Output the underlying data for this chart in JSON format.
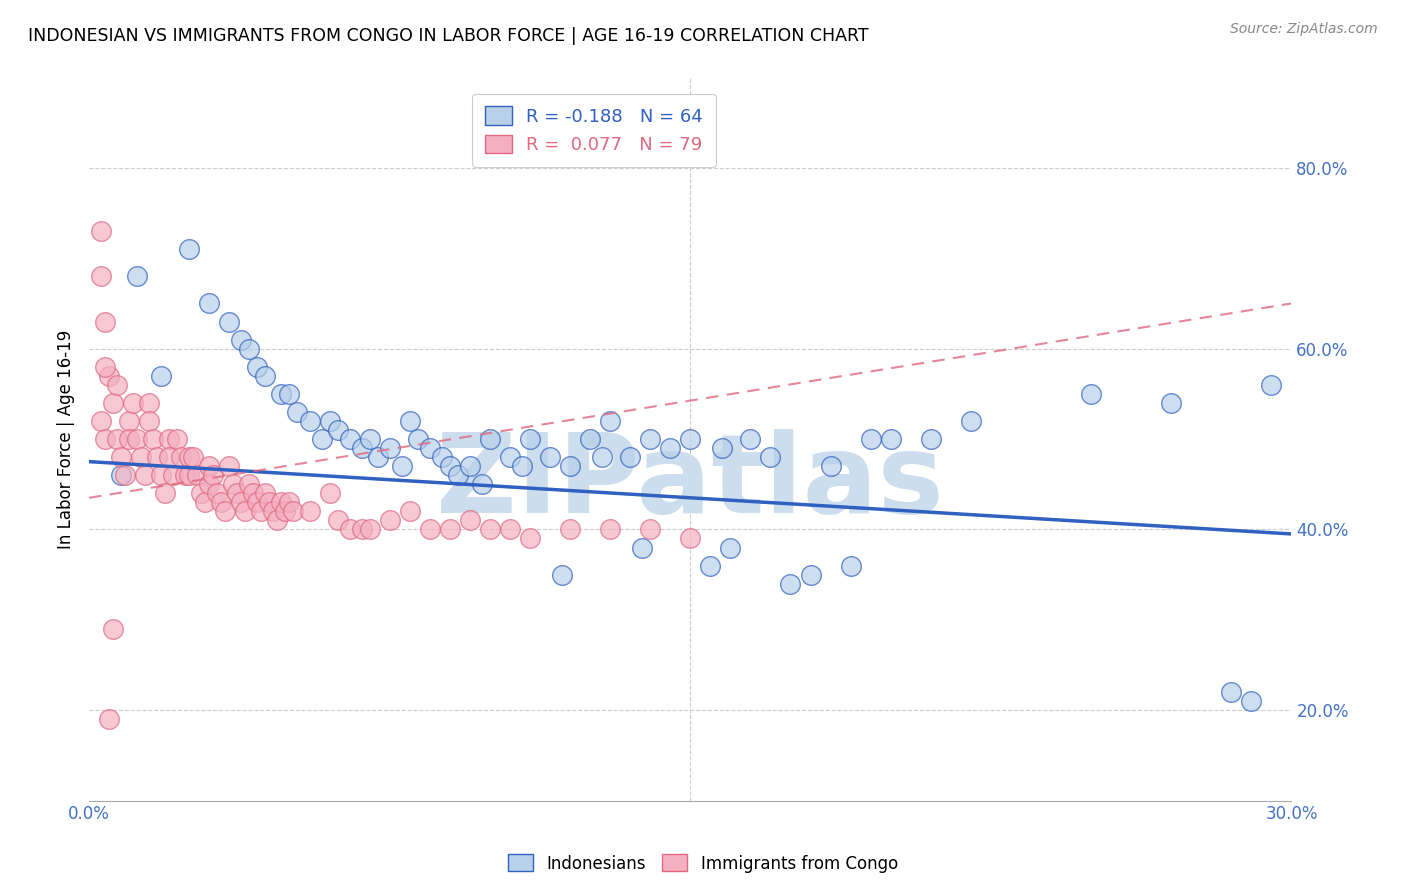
{
  "title": "INDONESIAN VS IMMIGRANTS FROM CONGO IN LABOR FORCE | AGE 16-19 CORRELATION CHART",
  "source": "Source: ZipAtlas.com",
  "ylabel": "In Labor Force | Age 16-19",
  "xlim": [
    0.0,
    0.3
  ],
  "ylim": [
    0.1,
    0.9
  ],
  "yticks_right": [
    0.2,
    0.4,
    0.6,
    0.8
  ],
  "ytick_labels_right": [
    "20.0%",
    "40.0%",
    "60.0%",
    "80.0%"
  ],
  "blue_R": -0.188,
  "blue_N": 64,
  "pink_R": 0.077,
  "pink_N": 79,
  "blue_color": "#b8d0ea",
  "pink_color": "#f4b0c0",
  "blue_line_color": "#3060C0",
  "pink_line_color": "#E06880",
  "watermark": "ZIPatlas",
  "watermark_color": "#ccdded",
  "grid_color": "#cccccc",
  "background_color": "#ffffff",
  "blue_scatter_x": [
    0.008,
    0.025,
    0.03,
    0.035,
    0.038,
    0.04,
    0.042,
    0.044,
    0.048,
    0.05,
    0.052,
    0.055,
    0.058,
    0.06,
    0.062,
    0.065,
    0.068,
    0.07,
    0.072,
    0.075,
    0.078,
    0.08,
    0.082,
    0.085,
    0.088,
    0.09,
    0.092,
    0.095,
    0.098,
    0.1,
    0.105,
    0.108,
    0.11,
    0.115,
    0.118,
    0.12,
    0.125,
    0.128,
    0.13,
    0.135,
    0.138,
    0.14,
    0.145,
    0.15,
    0.155,
    0.158,
    0.16,
    0.165,
    0.17,
    0.175,
    0.18,
    0.185,
    0.19,
    0.195,
    0.2,
    0.21,
    0.22,
    0.25,
    0.27,
    0.285,
    0.29,
    0.295,
    0.012,
    0.018
  ],
  "blue_scatter_y": [
    0.46,
    0.71,
    0.65,
    0.63,
    0.61,
    0.6,
    0.58,
    0.57,
    0.55,
    0.55,
    0.53,
    0.52,
    0.5,
    0.52,
    0.51,
    0.5,
    0.49,
    0.5,
    0.48,
    0.49,
    0.47,
    0.52,
    0.5,
    0.49,
    0.48,
    0.47,
    0.46,
    0.47,
    0.45,
    0.5,
    0.48,
    0.47,
    0.5,
    0.48,
    0.35,
    0.47,
    0.5,
    0.48,
    0.52,
    0.48,
    0.38,
    0.5,
    0.49,
    0.5,
    0.36,
    0.49,
    0.38,
    0.5,
    0.48,
    0.34,
    0.35,
    0.47,
    0.36,
    0.5,
    0.5,
    0.5,
    0.52,
    0.55,
    0.54,
    0.22,
    0.21,
    0.56,
    0.68,
    0.57
  ],
  "pink_scatter_x": [
    0.003,
    0.004,
    0.005,
    0.006,
    0.007,
    0.008,
    0.009,
    0.01,
    0.01,
    0.011,
    0.012,
    0.013,
    0.014,
    0.015,
    0.015,
    0.016,
    0.017,
    0.018,
    0.019,
    0.02,
    0.02,
    0.021,
    0.022,
    0.023,
    0.024,
    0.025,
    0.025,
    0.026,
    0.027,
    0.028,
    0.029,
    0.03,
    0.03,
    0.031,
    0.032,
    0.033,
    0.034,
    0.035,
    0.036,
    0.037,
    0.038,
    0.039,
    0.04,
    0.041,
    0.042,
    0.043,
    0.044,
    0.045,
    0.046,
    0.047,
    0.048,
    0.049,
    0.05,
    0.051,
    0.055,
    0.06,
    0.062,
    0.065,
    0.068,
    0.07,
    0.075,
    0.08,
    0.085,
    0.09,
    0.095,
    0.1,
    0.105,
    0.11,
    0.12,
    0.13,
    0.14,
    0.15,
    0.003,
    0.003,
    0.004,
    0.004,
    0.005,
    0.006,
    0.007
  ],
  "pink_scatter_y": [
    0.52,
    0.5,
    0.57,
    0.54,
    0.5,
    0.48,
    0.46,
    0.52,
    0.5,
    0.54,
    0.5,
    0.48,
    0.46,
    0.54,
    0.52,
    0.5,
    0.48,
    0.46,
    0.44,
    0.5,
    0.48,
    0.46,
    0.5,
    0.48,
    0.46,
    0.48,
    0.46,
    0.48,
    0.46,
    0.44,
    0.43,
    0.47,
    0.45,
    0.46,
    0.44,
    0.43,
    0.42,
    0.47,
    0.45,
    0.44,
    0.43,
    0.42,
    0.45,
    0.44,
    0.43,
    0.42,
    0.44,
    0.43,
    0.42,
    0.41,
    0.43,
    0.42,
    0.43,
    0.42,
    0.42,
    0.44,
    0.41,
    0.4,
    0.4,
    0.4,
    0.41,
    0.42,
    0.4,
    0.4,
    0.41,
    0.4,
    0.4,
    0.39,
    0.4,
    0.4,
    0.4,
    0.39,
    0.73,
    0.68,
    0.63,
    0.58,
    0.19,
    0.29,
    0.56
  ],
  "blue_line_x0": 0.0,
  "blue_line_y0": 0.475,
  "blue_line_x1": 0.3,
  "blue_line_y1": 0.395,
  "pink_line_x0": 0.0,
  "pink_line_y0": 0.435,
  "pink_line_x1": 0.3,
  "pink_line_y1": 0.65
}
